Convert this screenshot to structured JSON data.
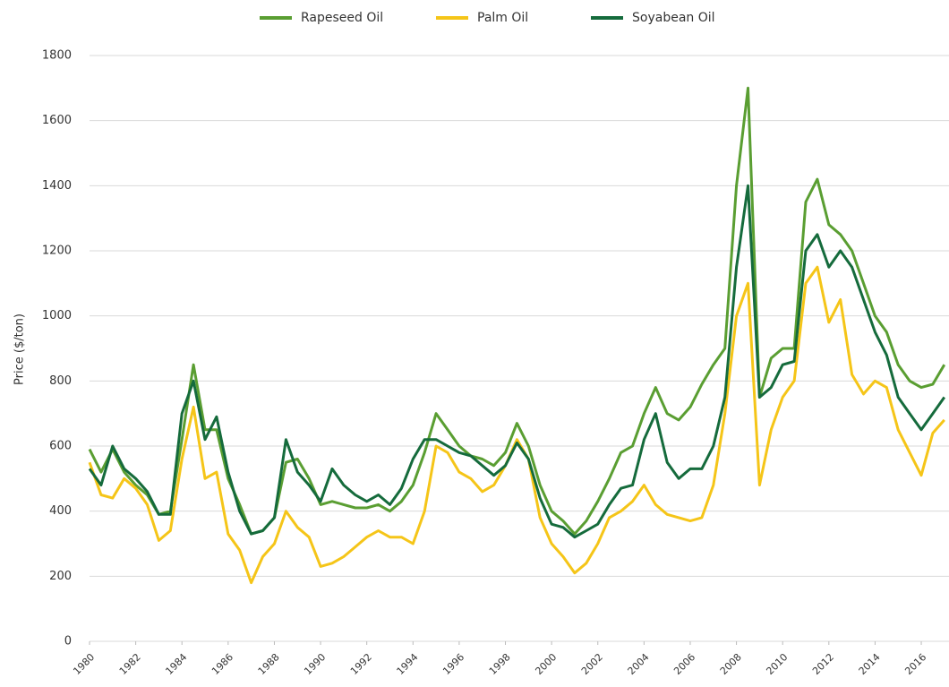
{
  "chart_data": {
    "type": "line",
    "y_label": "Price ($/ton)",
    "x": [
      1980,
      1980.5,
      1981,
      1981.5,
      1982,
      1982.5,
      1983,
      1983.5,
      1984,
      1984.5,
      1985,
      1985.5,
      1986,
      1986.5,
      1987,
      1987.5,
      1988,
      1988.5,
      1989,
      1989.5,
      1990,
      1990.5,
      1991,
      1991.5,
      1992,
      1992.5,
      1993,
      1993.5,
      1994,
      1994.5,
      1995,
      1995.5,
      1996,
      1996.5,
      1997,
      1997.5,
      1998,
      1998.5,
      1999,
      1999.5,
      2000,
      2000.5,
      2001,
      2001.5,
      2002,
      2002.5,
      2003,
      2003.5,
      2004,
      2004.5,
      2005,
      2005.5,
      2006,
      2006.5,
      2007,
      2007.5,
      2008,
      2008.5,
      2009,
      2009.5,
      2010,
      2010.5,
      2011,
      2011.5,
      2012,
      2012.5,
      2013,
      2013.5,
      2014,
      2014.5,
      2015,
      2015.5,
      2016,
      2016.5,
      2017
    ],
    "series": [
      {
        "name": "Rapeseed Oil",
        "color": "#5a9e32",
        "values": [
          590,
          520,
          590,
          520,
          480,
          450,
          390,
          400,
          620,
          850,
          650,
          650,
          500,
          420,
          330,
          340,
          380,
          550,
          560,
          500,
          420,
          430,
          420,
          410,
          410,
          420,
          400,
          430,
          480,
          580,
          700,
          650,
          600,
          570,
          560,
          540,
          580,
          670,
          600,
          480,
          400,
          370,
          330,
          370,
          430,
          500,
          580,
          600,
          700,
          780,
          700,
          680,
          720,
          790,
          850,
          900,
          1400,
          1700,
          750,
          870,
          900,
          900,
          1350,
          1420,
          1280,
          1250,
          1200,
          1100,
          1000,
          950,
          850,
          800,
          780,
          790,
          850
        ]
      },
      {
        "name": "Palm Oil",
        "color": "#f5c518",
        "values": [
          550,
          450,
          440,
          500,
          470,
          420,
          310,
          340,
          560,
          720,
          500,
          520,
          330,
          280,
          180,
          260,
          300,
          400,
          350,
          320,
          230,
          240,
          260,
          290,
          320,
          340,
          320,
          320,
          300,
          400,
          600,
          580,
          520,
          500,
          460,
          480,
          540,
          620,
          560,
          380,
          300,
          260,
          210,
          240,
          300,
          380,
          400,
          430,
          480,
          420,
          390,
          380,
          370,
          380,
          480,
          700,
          1000,
          1100,
          480,
          650,
          750,
          800,
          1100,
          1150,
          980,
          1050,
          820,
          760,
          800,
          780,
          650,
          580,
          510,
          640,
          680
        ]
      },
      {
        "name": "Soyabean Oil",
        "color": "#156b3c",
        "values": [
          530,
          480,
          600,
          530,
          500,
          460,
          390,
          390,
          700,
          800,
          620,
          690,
          520,
          400,
          330,
          340,
          380,
          620,
          520,
          480,
          430,
          530,
          480,
          450,
          430,
          450,
          420,
          470,
          560,
          620,
          620,
          600,
          580,
          570,
          540,
          510,
          540,
          610,
          560,
          440,
          360,
          350,
          320,
          340,
          360,
          420,
          470,
          480,
          620,
          700,
          550,
          500,
          530,
          530,
          600,
          750,
          1150,
          1400,
          750,
          780,
          850,
          860,
          1200,
          1250,
          1150,
          1200,
          1150,
          1050,
          950,
          880,
          750,
          700,
          650,
          700,
          750
        ]
      }
    ],
    "xlim": [
      1980,
      2017.2
    ],
    "xticks": [
      1980,
      1982,
      1984,
      1986,
      1988,
      1990,
      1992,
      1994,
      1996,
      1998,
      2000,
      2002,
      2004,
      2006,
      2008,
      2010,
      2012,
      2014,
      2016
    ],
    "ylim": [
      0,
      1800
    ],
    "yticks": [
      0,
      200,
      400,
      600,
      800,
      1000,
      1200,
      1400,
      1600,
      1800
    ],
    "grid": true,
    "legend": "top"
  }
}
